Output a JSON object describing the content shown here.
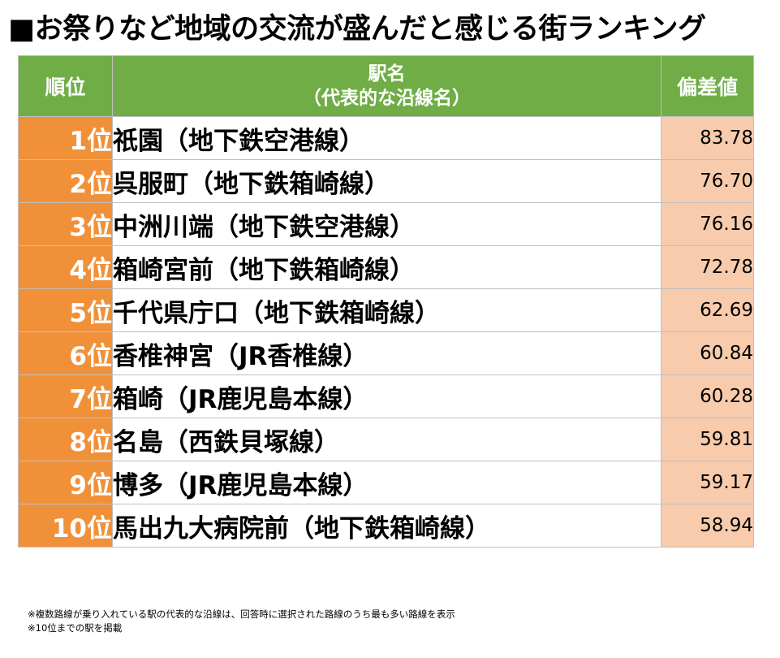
{
  "title": "■お祭りなど地域の交流が盛んだと感じる街ランキング",
  "table": {
    "headers": {
      "rank": "順位",
      "name_line1": "駅名",
      "name_line2": "（代表的な沿線名）",
      "score": "偏差値"
    },
    "rows": [
      {
        "rank": "1位",
        "station": "祇園（地下鉄空港線）",
        "score": "83.78"
      },
      {
        "rank": "2位",
        "station": "呉服町（地下鉄箱崎線）",
        "score": "76.70"
      },
      {
        "rank": "3位",
        "station": "中洲川端（地下鉄空港線）",
        "score": "76.16"
      },
      {
        "rank": "4位",
        "station": "箱崎宮前（地下鉄箱崎線）",
        "score": "72.78"
      },
      {
        "rank": "5位",
        "station": "千代県庁口（地下鉄箱崎線）",
        "score": "62.69"
      },
      {
        "rank": "6位",
        "station": "香椎神宮（JR香椎線）",
        "score": "60.84"
      },
      {
        "rank": "7位",
        "station": "箱崎（JR鹿児島本線）",
        "score": "60.28"
      },
      {
        "rank": "8位",
        "station": "名島（西鉄貝塚線）",
        "score": "59.81"
      },
      {
        "rank": "9位",
        "station": "博多（JR鹿児島本線）",
        "score": "59.17"
      },
      {
        "rank": "10位",
        "station": "馬出九大病院前（地下鉄箱崎線）",
        "score": "58.94"
      }
    ]
  },
  "notes": [
    "※複数路線が乗り入れている駅の代表的な沿線は、回答時に選択された路線のうち最も多い路線を表示",
    "※10位までの駅を掲載"
  ],
  "colors": {
    "header_bg": "#70ad47",
    "rank_bg": "#f0913a",
    "score_bg": "#f8cbad",
    "border": "#bfbfbf"
  }
}
